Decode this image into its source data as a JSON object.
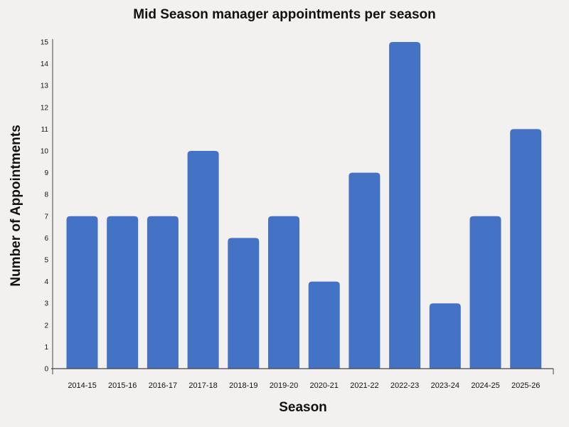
{
  "chart_data": {
    "type": "bar",
    "title": "Mid Season manager appointments per season",
    "xlabel": "Season",
    "ylabel": "Number of Appointments",
    "categories": [
      "2014-15",
      "2015-16",
      "2016-17",
      "2017-18",
      "2018-19",
      "2019-20",
      "2020-21",
      "2021-22",
      "2022-23",
      "2023-24",
      "2024-25",
      "2025-26"
    ],
    "values": [
      7,
      7,
      7,
      10,
      6,
      7,
      4,
      9,
      15,
      3,
      7,
      11
    ],
    "ylim": [
      0,
      15
    ],
    "yticks": [
      "0",
      "1",
      "2",
      "3",
      "4",
      "5",
      "6",
      "7",
      "8",
      "9",
      "10",
      "11",
      "12",
      "13",
      "14",
      "15"
    ],
    "bar_color": "#4472c4",
    "background_color": "#f3f1ef",
    "grid": false,
    "legend": "none"
  }
}
